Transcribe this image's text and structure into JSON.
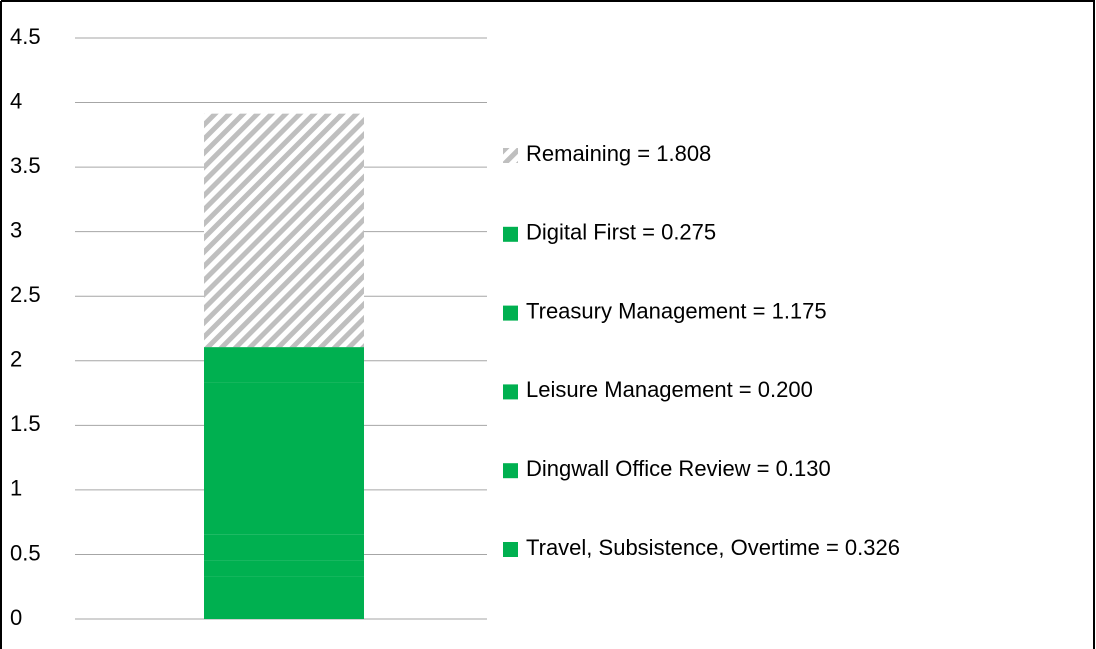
{
  "chart_data": {
    "type": "stacked_bar",
    "categories": [
      null
    ],
    "series": [
      {
        "name": "Travel, Subsistence, Overtime = 0.326",
        "color": "#00b050",
        "values": [
          0.326
        ]
      },
      {
        "name": "Dingwall Office Review = 0.130",
        "color": "#00b050",
        "values": [
          0.13
        ]
      },
      {
        "name": "Leisure Management = 0.200",
        "color": "#00b050",
        "values": [
          0.2
        ]
      },
      {
        "name": "Treasury Management = 1.175",
        "color": "#00b050",
        "values": [
          1.175
        ]
      },
      {
        "name": "Digital First = 0.275",
        "color": "#00b050",
        "values": [
          0.275
        ]
      },
      {
        "name": "Remaining = 1.808",
        "color": "#bfbfbf",
        "pattern": "diagonal-stripes",
        "values": [
          1.808
        ]
      }
    ],
    "ylim": [
      0,
      4.5
    ],
    "yticks": [
      0,
      0.5,
      1,
      1.5,
      2,
      2.5,
      3,
      3.5,
      4,
      4.5
    ],
    "grid": true,
    "legend": "right"
  }
}
